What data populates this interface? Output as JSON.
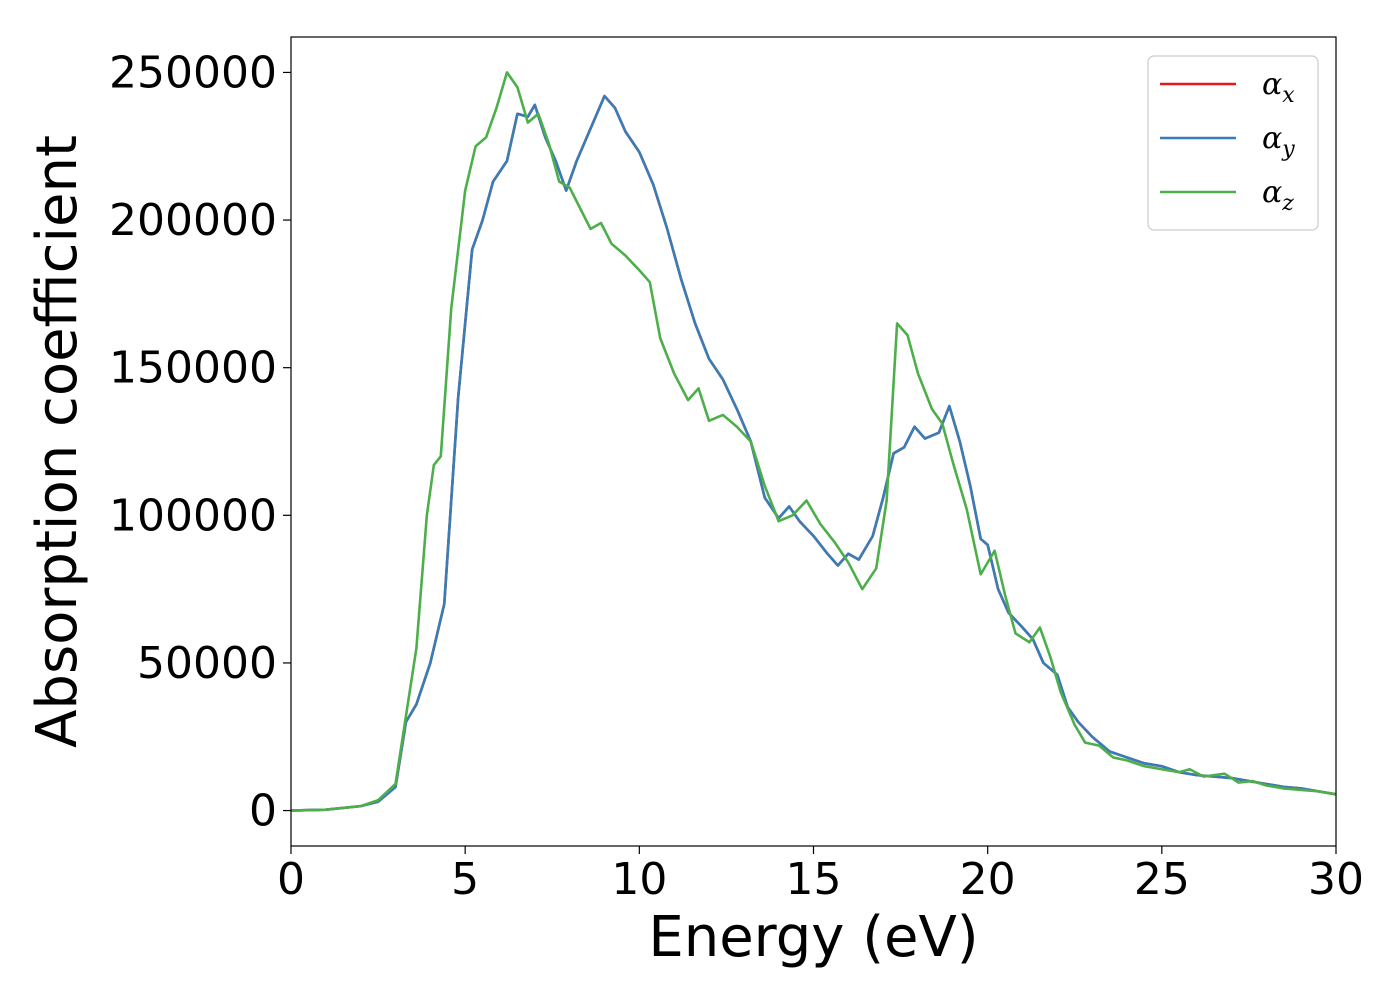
{
  "chart_data": {
    "type": "line",
    "xlabel": "Energy (eV)",
    "ylabel": "Absorption coefficient",
    "xlim": [
      0,
      30
    ],
    "ylim": [
      -12000,
      262000
    ],
    "xticks": [
      0,
      5,
      10,
      15,
      20,
      25,
      30
    ],
    "xtick_labels": [
      "0",
      "5",
      "10",
      "15",
      "20",
      "25",
      "30"
    ],
    "yticks": [
      0,
      50000,
      100000,
      150000,
      200000,
      250000
    ],
    "ytick_labels": [
      "0",
      "50000",
      "100000",
      "150000",
      "200000",
      "250000"
    ],
    "grid": false,
    "legend_position": "top-right",
    "series": [
      {
        "name": "α",
        "subscript": "x",
        "color": "#e41a1c",
        "points": [
          [
            0,
            0
          ],
          [
            1,
            300
          ],
          [
            2,
            1500
          ],
          [
            2.5,
            3000
          ],
          [
            3,
            8000
          ],
          [
            3.3,
            30000
          ],
          [
            3.6,
            36000
          ],
          [
            4,
            50000
          ],
          [
            4.4,
            70000
          ],
          [
            4.8,
            140000
          ],
          [
            5.2,
            190000
          ],
          [
            5.5,
            200000
          ],
          [
            5.8,
            213000
          ],
          [
            6.2,
            220000
          ],
          [
            6.5,
            236000
          ],
          [
            6.8,
            235000
          ],
          [
            7.0,
            239000
          ],
          [
            7.3,
            228000
          ],
          [
            7.6,
            220000
          ],
          [
            7.9,
            210000
          ],
          [
            8.2,
            220000
          ],
          [
            8.6,
            231000
          ],
          [
            9.0,
            242000
          ],
          [
            9.3,
            238000
          ],
          [
            9.6,
            230000
          ],
          [
            10.0,
            223000
          ],
          [
            10.4,
            212000
          ],
          [
            10.8,
            197000
          ],
          [
            11.2,
            180000
          ],
          [
            11.6,
            165000
          ],
          [
            12.0,
            153000
          ],
          [
            12.4,
            146000
          ],
          [
            12.8,
            136000
          ],
          [
            13.2,
            125000
          ],
          [
            13.6,
            106000
          ],
          [
            14.0,
            99000
          ],
          [
            14.3,
            103000
          ],
          [
            14.6,
            98000
          ],
          [
            15.0,
            93000
          ],
          [
            15.4,
            87000
          ],
          [
            15.7,
            83000
          ],
          [
            16.0,
            87000
          ],
          [
            16.3,
            85000
          ],
          [
            16.7,
            93000
          ],
          [
            17.0,
            106000
          ],
          [
            17.3,
            121000
          ],
          [
            17.6,
            123000
          ],
          [
            17.9,
            130000
          ],
          [
            18.2,
            126000
          ],
          [
            18.6,
            128000
          ],
          [
            18.9,
            137000
          ],
          [
            19.2,
            125000
          ],
          [
            19.5,
            110000
          ],
          [
            19.8,
            92000
          ],
          [
            20.0,
            90000
          ],
          [
            20.3,
            75000
          ],
          [
            20.6,
            67000
          ],
          [
            21.0,
            62000
          ],
          [
            21.3,
            58000
          ],
          [
            21.6,
            50000
          ],
          [
            22.0,
            46000
          ],
          [
            22.3,
            35000
          ],
          [
            22.6,
            30000
          ],
          [
            23.0,
            25000
          ],
          [
            23.5,
            20000
          ],
          [
            24.0,
            18000
          ],
          [
            24.5,
            16000
          ],
          [
            25.0,
            15000
          ],
          [
            25.5,
            13000
          ],
          [
            26.0,
            12000
          ],
          [
            26.5,
            11500
          ],
          [
            27.0,
            11000
          ],
          [
            27.5,
            10000
          ],
          [
            28.0,
            9000
          ],
          [
            28.5,
            8000
          ],
          [
            29.0,
            7500
          ],
          [
            29.5,
            6500
          ],
          [
            30.0,
            5500
          ]
        ]
      },
      {
        "name": "α",
        "subscript": "y",
        "color": "#377eb8",
        "points": [
          [
            0,
            0
          ],
          [
            1,
            300
          ],
          [
            2,
            1500
          ],
          [
            2.5,
            3000
          ],
          [
            3,
            8000
          ],
          [
            3.3,
            30000
          ],
          [
            3.6,
            36000
          ],
          [
            4,
            50000
          ],
          [
            4.4,
            70000
          ],
          [
            4.8,
            140000
          ],
          [
            5.2,
            190000
          ],
          [
            5.5,
            200000
          ],
          [
            5.8,
            213000
          ],
          [
            6.2,
            220000
          ],
          [
            6.5,
            236000
          ],
          [
            6.8,
            235000
          ],
          [
            7.0,
            239000
          ],
          [
            7.3,
            228000
          ],
          [
            7.6,
            220000
          ],
          [
            7.9,
            210000
          ],
          [
            8.2,
            220000
          ],
          [
            8.6,
            231000
          ],
          [
            9.0,
            242000
          ],
          [
            9.3,
            238000
          ],
          [
            9.6,
            230000
          ],
          [
            10.0,
            223000
          ],
          [
            10.4,
            212000
          ],
          [
            10.8,
            197000
          ],
          [
            11.2,
            180000
          ],
          [
            11.6,
            165000
          ],
          [
            12.0,
            153000
          ],
          [
            12.4,
            146000
          ],
          [
            12.8,
            136000
          ],
          [
            13.2,
            125000
          ],
          [
            13.6,
            106000
          ],
          [
            14.0,
            99000
          ],
          [
            14.3,
            103000
          ],
          [
            14.6,
            98000
          ],
          [
            15.0,
            93000
          ],
          [
            15.4,
            87000
          ],
          [
            15.7,
            83000
          ],
          [
            16.0,
            87000
          ],
          [
            16.3,
            85000
          ],
          [
            16.7,
            93000
          ],
          [
            17.0,
            106000
          ],
          [
            17.3,
            121000
          ],
          [
            17.6,
            123000
          ],
          [
            17.9,
            130000
          ],
          [
            18.2,
            126000
          ],
          [
            18.6,
            128000
          ],
          [
            18.9,
            137000
          ],
          [
            19.2,
            125000
          ],
          [
            19.5,
            110000
          ],
          [
            19.8,
            92000
          ],
          [
            20.0,
            90000
          ],
          [
            20.3,
            75000
          ],
          [
            20.6,
            67000
          ],
          [
            21.0,
            62000
          ],
          [
            21.3,
            58000
          ],
          [
            21.6,
            50000
          ],
          [
            22.0,
            46000
          ],
          [
            22.3,
            35000
          ],
          [
            22.6,
            30000
          ],
          [
            23.0,
            25000
          ],
          [
            23.5,
            20000
          ],
          [
            24.0,
            18000
          ],
          [
            24.5,
            16000
          ],
          [
            25.0,
            15000
          ],
          [
            25.5,
            13000
          ],
          [
            26.0,
            12000
          ],
          [
            26.5,
            11500
          ],
          [
            27.0,
            11000
          ],
          [
            27.5,
            10000
          ],
          [
            28.0,
            9000
          ],
          [
            28.5,
            8000
          ],
          [
            29.0,
            7500
          ],
          [
            29.5,
            6500
          ],
          [
            30.0,
            5500
          ]
        ]
      },
      {
        "name": "α",
        "subscript": "z",
        "color": "#4daf4a",
        "points": [
          [
            0,
            0
          ],
          [
            1,
            300
          ],
          [
            2,
            1500
          ],
          [
            2.5,
            3500
          ],
          [
            3,
            9000
          ],
          [
            3.3,
            32000
          ],
          [
            3.6,
            55000
          ],
          [
            3.9,
            100000
          ],
          [
            4.1,
            117000
          ],
          [
            4.3,
            120000
          ],
          [
            4.6,
            170000
          ],
          [
            5.0,
            210000
          ],
          [
            5.3,
            225000
          ],
          [
            5.6,
            228000
          ],
          [
            5.9,
            238000
          ],
          [
            6.2,
            250000
          ],
          [
            6.5,
            245000
          ],
          [
            6.8,
            233000
          ],
          [
            7.1,
            236000
          ],
          [
            7.4,
            226000
          ],
          [
            7.7,
            213000
          ],
          [
            8.0,
            211000
          ],
          [
            8.3,
            204000
          ],
          [
            8.6,
            197000
          ],
          [
            8.9,
            199000
          ],
          [
            9.2,
            192000
          ],
          [
            9.6,
            188000
          ],
          [
            10.0,
            183000
          ],
          [
            10.3,
            179000
          ],
          [
            10.6,
            160000
          ],
          [
            11.0,
            148000
          ],
          [
            11.4,
            139000
          ],
          [
            11.7,
            143000
          ],
          [
            12.0,
            132000
          ],
          [
            12.4,
            134000
          ],
          [
            12.8,
            130000
          ],
          [
            13.2,
            125000
          ],
          [
            13.6,
            110000
          ],
          [
            14.0,
            98000
          ],
          [
            14.4,
            100000
          ],
          [
            14.8,
            105000
          ],
          [
            15.2,
            97000
          ],
          [
            15.6,
            91000
          ],
          [
            16.0,
            84000
          ],
          [
            16.4,
            75000
          ],
          [
            16.8,
            82000
          ],
          [
            17.1,
            105000
          ],
          [
            17.4,
            165000
          ],
          [
            17.7,
            161000
          ],
          [
            18.0,
            148000
          ],
          [
            18.4,
            136000
          ],
          [
            18.7,
            131000
          ],
          [
            19.0,
            118000
          ],
          [
            19.4,
            102000
          ],
          [
            19.8,
            80000
          ],
          [
            20.2,
            88000
          ],
          [
            20.5,
            73000
          ],
          [
            20.8,
            60000
          ],
          [
            21.2,
            57000
          ],
          [
            21.5,
            62000
          ],
          [
            21.8,
            52000
          ],
          [
            22.1,
            40000
          ],
          [
            22.5,
            29000
          ],
          [
            22.8,
            23000
          ],
          [
            23.2,
            22000
          ],
          [
            23.6,
            18000
          ],
          [
            24.0,
            17000
          ],
          [
            24.5,
            15000
          ],
          [
            25.0,
            14000
          ],
          [
            25.5,
            13000
          ],
          [
            25.8,
            14000
          ],
          [
            26.2,
            11500
          ],
          [
            26.8,
            12500
          ],
          [
            27.2,
            9500
          ],
          [
            27.6,
            10000
          ],
          [
            28.0,
            8500
          ],
          [
            28.5,
            7500
          ],
          [
            29.0,
            7000
          ],
          [
            29.5,
            6500
          ],
          [
            30.0,
            5500
          ]
        ]
      }
    ]
  }
}
